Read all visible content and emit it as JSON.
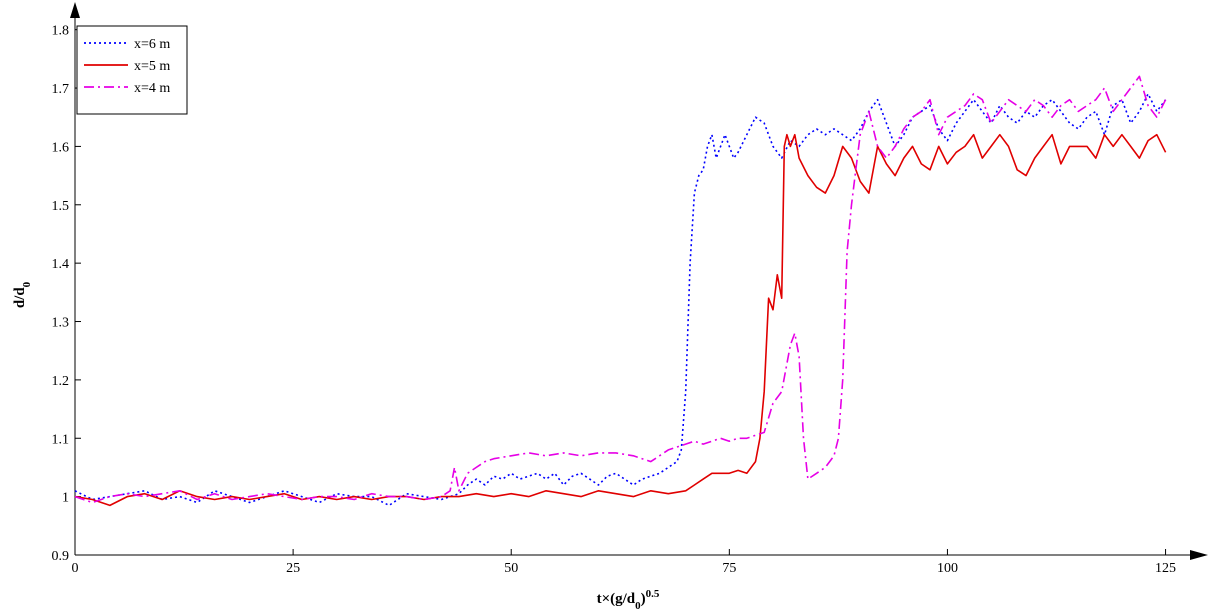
{
  "chart_data": {
    "type": "line",
    "xlabel": "t×(g/d",
    "xlabel_sub": "0",
    "xlabel_close": ")",
    "xlabel_sup": "0.5",
    "ylabel": "d/d",
    "ylabel_sub": "0",
    "xlim": [
      0,
      127
    ],
    "ylim": [
      0.9,
      1.82
    ],
    "xticks": [
      0,
      25,
      50,
      75,
      100,
      125
    ],
    "xtick_labels": [
      "0",
      "25",
      "50",
      "75",
      "100",
      "125"
    ],
    "yticks": [
      0.9,
      1,
      1.1,
      1.2,
      1.3,
      1.4,
      1.5,
      1.6,
      1.7,
      1.8
    ],
    "ytick_labels": [
      "0.9",
      "1",
      "1.1",
      "1.2",
      "1.3",
      "1.4",
      "1.5",
      "1.6",
      "1.7",
      "1.8"
    ],
    "grid": false,
    "legend_position": "top-left",
    "series": [
      {
        "name": "x=6 m",
        "color": "#0000ff",
        "dash": "dotted",
        "x": [
          0,
          2,
          4,
          6,
          8,
          10,
          12,
          14,
          16,
          18,
          20,
          22,
          24,
          26,
          28,
          30,
          32,
          34,
          36,
          38,
          40,
          42,
          43,
          44,
          45,
          46,
          47,
          48,
          49,
          50,
          51,
          52,
          53,
          54,
          55,
          56,
          57,
          58,
          59,
          60,
          61,
          62,
          63,
          64,
          65,
          66,
          67,
          68,
          69,
          69.5,
          70,
          70.5,
          71,
          71.5,
          72,
          72.5,
          73,
          73.5,
          74,
          74.5,
          75,
          75.5,
          76,
          77,
          78,
          79,
          80,
          81,
          82,
          83,
          84,
          85,
          86,
          87,
          88,
          89,
          90,
          91,
          92,
          93,
          94,
          95,
          96,
          97,
          98,
          99,
          100,
          101,
          102,
          103,
          104,
          105,
          106,
          107,
          108,
          109,
          110,
          111,
          112,
          113,
          114,
          115,
          116,
          117,
          118,
          119,
          120,
          121,
          122,
          123,
          124,
          125
        ],
        "y": [
          1.01,
          0.995,
          1.0,
          1.005,
          1.01,
          0.995,
          1.0,
          0.99,
          1.01,
          1.0,
          0.99,
          1.0,
          1.01,
          1.0,
          0.99,
          1.005,
          1.0,
          1.0,
          0.985,
          1.005,
          1.0,
          0.995,
          1.0,
          1.005,
          1.02,
          1.03,
          1.02,
          1.035,
          1.03,
          1.04,
          1.03,
          1.035,
          1.04,
          1.03,
          1.04,
          1.02,
          1.035,
          1.04,
          1.03,
          1.02,
          1.035,
          1.04,
          1.03,
          1.02,
          1.03,
          1.035,
          1.04,
          1.05,
          1.06,
          1.08,
          1.18,
          1.4,
          1.52,
          1.55,
          1.56,
          1.6,
          1.62,
          1.58,
          1.6,
          1.62,
          1.6,
          1.58,
          1.59,
          1.62,
          1.65,
          1.64,
          1.6,
          1.58,
          1.61,
          1.6,
          1.62,
          1.63,
          1.62,
          1.63,
          1.62,
          1.61,
          1.63,
          1.66,
          1.68,
          1.64,
          1.6,
          1.62,
          1.65,
          1.66,
          1.67,
          1.63,
          1.61,
          1.64,
          1.66,
          1.68,
          1.66,
          1.64,
          1.67,
          1.65,
          1.64,
          1.66,
          1.65,
          1.67,
          1.68,
          1.66,
          1.64,
          1.63,
          1.65,
          1.66,
          1.62,
          1.67,
          1.68,
          1.64,
          1.66,
          1.69,
          1.66,
          1.68
        ]
      },
      {
        "name": "x=5 m",
        "color": "#e00000",
        "dash": "solid",
        "x": [
          0,
          2,
          4,
          6,
          8,
          10,
          12,
          14,
          16,
          18,
          20,
          22,
          24,
          26,
          28,
          30,
          32,
          34,
          36,
          38,
          40,
          42,
          44,
          46,
          48,
          50,
          52,
          54,
          56,
          58,
          60,
          62,
          64,
          66,
          68,
          70,
          71,
          72,
          73,
          74,
          75,
          76,
          77,
          78,
          78.5,
          79,
          79.5,
          80,
          80.5,
          81,
          81.3,
          81.6,
          82,
          82.5,
          83,
          84,
          85,
          86,
          87,
          88,
          89,
          90,
          91,
          92,
          93,
          94,
          95,
          96,
          97,
          98,
          99,
          100,
          101,
          102,
          103,
          104,
          105,
          106,
          107,
          108,
          109,
          110,
          111,
          112,
          113,
          114,
          115,
          116,
          117,
          118,
          119,
          120,
          121,
          122,
          123,
          124,
          125
        ],
        "y": [
          1.0,
          0.995,
          0.985,
          1.0,
          1.005,
          0.995,
          1.01,
          1.0,
          0.995,
          1.0,
          0.995,
          1.0,
          1.005,
          0.995,
          1.0,
          0.995,
          1.0,
          0.995,
          1.0,
          1.0,
          0.995,
          1.0,
          1.0,
          1.005,
          1.0,
          1.005,
          1.0,
          1.01,
          1.005,
          1.0,
          1.01,
          1.005,
          1.0,
          1.01,
          1.005,
          1.01,
          1.02,
          1.03,
          1.04,
          1.04,
          1.04,
          1.045,
          1.04,
          1.06,
          1.1,
          1.18,
          1.34,
          1.32,
          1.38,
          1.34,
          1.6,
          1.62,
          1.6,
          1.62,
          1.58,
          1.55,
          1.53,
          1.52,
          1.55,
          1.6,
          1.58,
          1.54,
          1.52,
          1.6,
          1.57,
          1.55,
          1.58,
          1.6,
          1.57,
          1.56,
          1.6,
          1.57,
          1.59,
          1.6,
          1.62,
          1.58,
          1.6,
          1.62,
          1.6,
          1.56,
          1.55,
          1.58,
          1.6,
          1.62,
          1.57,
          1.6,
          1.6,
          1.6,
          1.58,
          1.62,
          1.6,
          1.62,
          1.6,
          1.58,
          1.61,
          1.62,
          1.59
        ]
      },
      {
        "name": "x=4 m",
        "color": "#e600e6",
        "dash": "dashdot",
        "x": [
          0,
          2,
          4,
          6,
          8,
          10,
          12,
          14,
          16,
          18,
          20,
          22,
          24,
          26,
          28,
          30,
          32,
          34,
          36,
          38,
          40,
          42,
          43,
          43.5,
          44,
          45,
          46,
          47,
          48,
          50,
          52,
          54,
          56,
          58,
          60,
          62,
          64,
          65,
          66,
          67,
          68,
          69,
          70,
          71,
          72,
          73,
          74,
          75,
          76,
          77,
          78,
          79,
          80,
          81,
          82,
          82.5,
          83,
          83.5,
          84,
          85,
          86,
          87,
          87.5,
          88,
          88.5,
          89,
          89.5,
          90,
          91,
          92,
          93,
          94,
          95,
          96,
          97,
          98,
          99,
          100,
          101,
          102,
          103,
          104,
          105,
          106,
          107,
          108,
          109,
          110,
          111,
          112,
          113,
          114,
          115,
          116,
          117,
          118,
          119,
          120,
          121,
          122,
          123,
          124,
          125
        ],
        "y": [
          1.0,
          0.99,
          1.0,
          1.005,
          1.0,
          1.005,
          1.01,
          0.995,
          1.005,
          0.995,
          1.0,
          1.005,
          1.0,
          0.995,
          1.0,
          1.0,
          0.995,
          1.005,
          1.0,
          1.0,
          0.995,
          1.0,
          1.01,
          1.05,
          1.01,
          1.04,
          1.05,
          1.06,
          1.065,
          1.07,
          1.075,
          1.07,
          1.075,
          1.07,
          1.075,
          1.075,
          1.07,
          1.065,
          1.06,
          1.07,
          1.08,
          1.085,
          1.09,
          1.095,
          1.09,
          1.095,
          1.1,
          1.095,
          1.1,
          1.1,
          1.105,
          1.11,
          1.16,
          1.18,
          1.26,
          1.28,
          1.24,
          1.1,
          1.03,
          1.04,
          1.05,
          1.07,
          1.1,
          1.2,
          1.42,
          1.5,
          1.56,
          1.62,
          1.66,
          1.6,
          1.58,
          1.6,
          1.63,
          1.65,
          1.66,
          1.68,
          1.62,
          1.65,
          1.66,
          1.67,
          1.69,
          1.68,
          1.64,
          1.66,
          1.68,
          1.67,
          1.66,
          1.68,
          1.67,
          1.65,
          1.67,
          1.68,
          1.66,
          1.67,
          1.68,
          1.7,
          1.66,
          1.68,
          1.7,
          1.72,
          1.67,
          1.65,
          1.68
        ]
      }
    ]
  }
}
